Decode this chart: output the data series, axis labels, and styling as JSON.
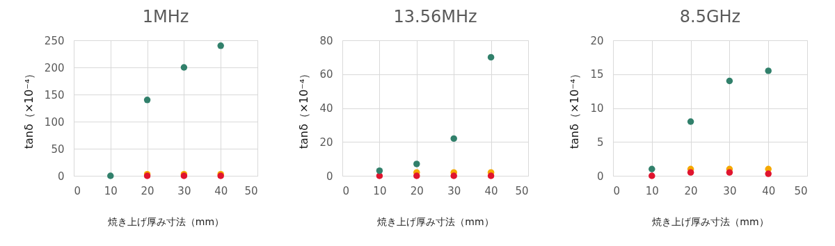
{
  "chart_data": [
    {
      "type": "scatter",
      "title": "1MHz",
      "xlabel": "焼き上げ厚み寸法（mm）",
      "ylabel": "tanδ（×10⁻⁴）",
      "xlim": [
        0,
        50
      ],
      "xticks": [
        0,
        10,
        20,
        30,
        40,
        50
      ],
      "ylim": [
        0,
        250
      ],
      "yticks": [
        0,
        50,
        100,
        150,
        200,
        250
      ],
      "grid": true,
      "marker": "circle",
      "series": [
        {
          "color": "#f5a800",
          "x": [
            20,
            30,
            40
          ],
          "values": [
            3,
            3,
            3
          ]
        },
        {
          "color": "#e0142e",
          "x": [
            20,
            30,
            40
          ],
          "values": [
            0,
            0,
            0
          ]
        },
        {
          "color": "#31806b",
          "x": [
            10,
            20,
            30,
            40
          ],
          "values": [
            0,
            140,
            200,
            240
          ]
        }
      ]
    },
    {
      "type": "scatter",
      "title": "13.56MHz",
      "xlabel": "焼き上げ厚み寸法（mm）",
      "ylabel": "tanδ（×10⁻⁴）",
      "xlim": [
        0,
        50
      ],
      "xticks": [
        0,
        10,
        20,
        30,
        40,
        50
      ],
      "ylim": [
        0,
        80
      ],
      "yticks": [
        0,
        20,
        40,
        60,
        80
      ],
      "grid": true,
      "marker": "circle",
      "series": [
        {
          "color": "#f5a800",
          "x": [
            20,
            30,
            40
          ],
          "values": [
            2,
            2,
            2
          ]
        },
        {
          "color": "#e0142e",
          "x": [
            10,
            20,
            30,
            40
          ],
          "values": [
            0,
            0,
            0,
            0
          ]
        },
        {
          "color": "#31806b",
          "x": [
            10,
            20,
            30,
            40
          ],
          "values": [
            3,
            7,
            22,
            70
          ]
        }
      ]
    },
    {
      "type": "scatter",
      "title": "8.5GHz",
      "xlabel": "焼き上げ厚み寸法（mm）",
      "ylabel": "tanδ（×10⁻⁴）",
      "xlim": [
        0,
        50
      ],
      "xticks": [
        0,
        10,
        20,
        30,
        40,
        50
      ],
      "ylim": [
        0,
        20
      ],
      "yticks": [
        0,
        5,
        10,
        15,
        20
      ],
      "grid": true,
      "marker": "circle",
      "series": [
        {
          "color": "#f5a800",
          "x": [
            20,
            30,
            40
          ],
          "values": [
            1,
            1,
            1
          ]
        },
        {
          "color": "#e0142e",
          "x": [
            10,
            20,
            30,
            40
          ],
          "values": [
            0,
            0.5,
            0.5,
            0.3
          ]
        },
        {
          "color": "#31806b",
          "x": [
            10,
            20,
            30,
            40
          ],
          "values": [
            1,
            8,
            14,
            15.5
          ]
        }
      ]
    }
  ]
}
